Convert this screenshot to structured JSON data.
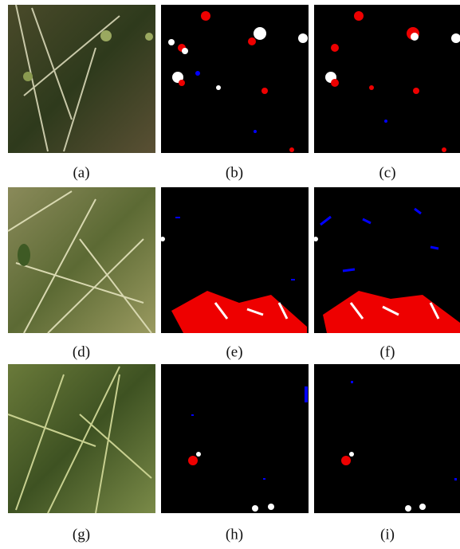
{
  "captions": [
    "(a)",
    "(b)",
    "(c)",
    "(d)",
    "(e)",
    "(f)",
    "(g)",
    "(h)",
    "(i)"
  ]
}
